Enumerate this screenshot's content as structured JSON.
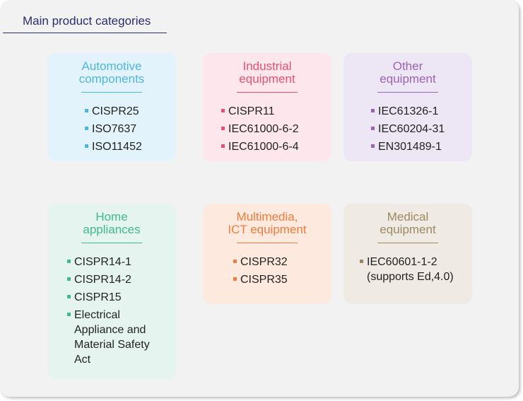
{
  "title": "Main product categories",
  "colors": {
    "automotive": "#4cb6e3",
    "industrial": "#e8506f",
    "other": "#9a62b3",
    "home": "#3fb98e",
    "multimedia": "#f07b3e",
    "medical": "#9c8a5e"
  },
  "categories": [
    {
      "heading": "Automotive\ncomponents",
      "items": [
        "CISPR25",
        "ISO7637",
        "ISO11452"
      ]
    },
    {
      "heading": "Industrial\nequipment",
      "items": [
        "CISPR11",
        "IEC61000-6-2",
        "IEC61000-6-4"
      ]
    },
    {
      "heading": "Other\nequipment",
      "items": [
        "IEC61326-1",
        "IEC60204-31",
        "EN301489-1"
      ]
    },
    {
      "heading": "Home\nappliances",
      "items": [
        "CISPR14-1",
        "CISPR14-2",
        "CISPR15",
        "Electrical\nAppliance and\nMaterial Safety\nAct"
      ]
    },
    {
      "heading": "Multimedia,\nICT equipment",
      "items": [
        "CISPR32",
        "CISPR35"
      ]
    },
    {
      "heading": "Medical\nequipment",
      "items": [
        "IEC60601-1-2\n(supports Ed,4.0)"
      ]
    }
  ]
}
